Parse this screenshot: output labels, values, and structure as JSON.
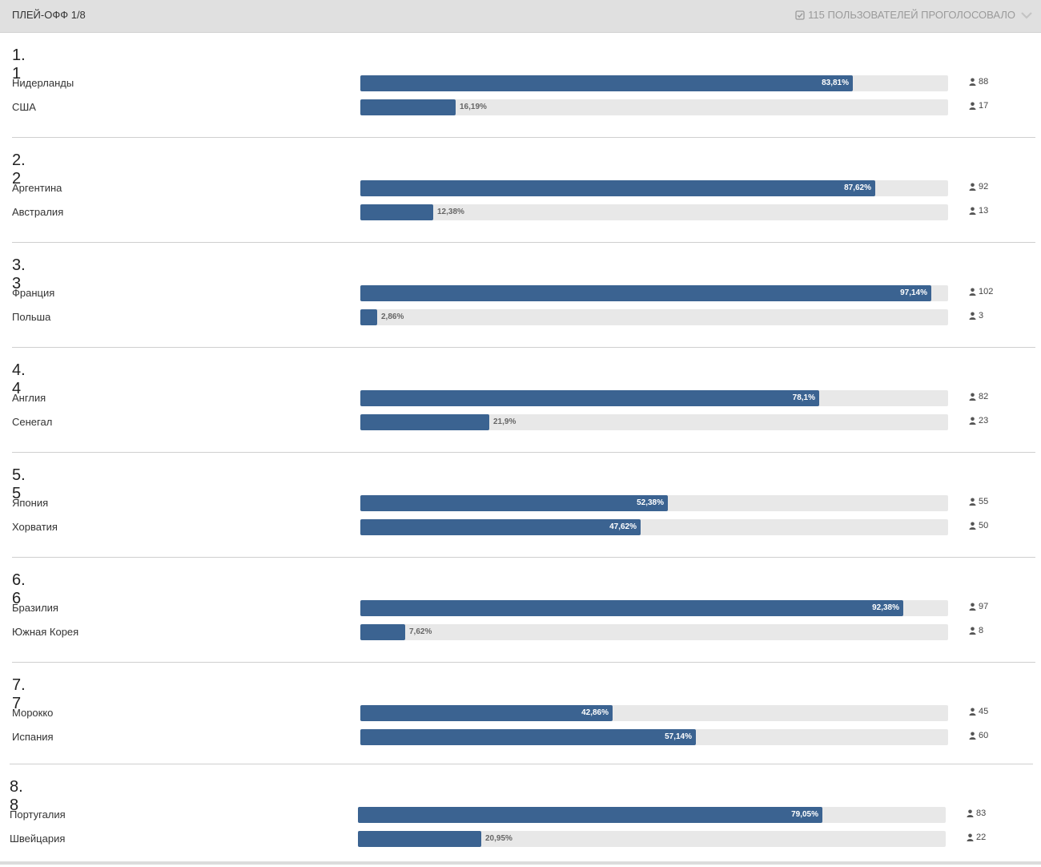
{
  "header": {
    "title": "ПЛЕЙ-ОФФ 1/8",
    "voted": "115 ПОЛЬЗОВАТЕЛЕЙ ПРОГОЛОСОВАЛО"
  },
  "colors": {
    "bar": "#3b6391",
    "track": "#e8e8e8"
  },
  "questions": [
    {
      "title": "1. 1",
      "options": [
        {
          "label": "Нидерланды",
          "percent": 83.81,
          "percent_text": "83,81%",
          "votes": "88"
        },
        {
          "label": "США",
          "percent": 16.19,
          "percent_text": "16,19%",
          "votes": "17"
        }
      ]
    },
    {
      "title": "2. 2",
      "options": [
        {
          "label": "Аргентина",
          "percent": 87.62,
          "percent_text": "87,62%",
          "votes": "92"
        },
        {
          "label": "Австралия",
          "percent": 12.38,
          "percent_text": "12,38%",
          "votes": "13"
        }
      ]
    },
    {
      "title": "3. 3",
      "options": [
        {
          "label": "Франция",
          "percent": 97.14,
          "percent_text": "97,14%",
          "votes": "102"
        },
        {
          "label": "Польша",
          "percent": 2.86,
          "percent_text": "2,86%",
          "votes": "3"
        }
      ]
    },
    {
      "title": "4. 4",
      "options": [
        {
          "label": "Англия",
          "percent": 78.1,
          "percent_text": "78,1%",
          "votes": "82"
        },
        {
          "label": "Сенегал",
          "percent": 21.9,
          "percent_text": "21,9%",
          "votes": "23"
        }
      ]
    },
    {
      "title": "5. 5",
      "options": [
        {
          "label": "Япония",
          "percent": 52.38,
          "percent_text": "52,38%",
          "votes": "55"
        },
        {
          "label": "Хорватия",
          "percent": 47.62,
          "percent_text": "47,62%",
          "votes": "50"
        }
      ]
    },
    {
      "title": "6. 6",
      "options": [
        {
          "label": "Бразилия",
          "percent": 92.38,
          "percent_text": "92,38%",
          "votes": "97"
        },
        {
          "label": "Южная Корея",
          "percent": 7.62,
          "percent_text": "7,62%",
          "votes": "8"
        }
      ]
    },
    {
      "title": "7. 7",
      "options": [
        {
          "label": "Морокко",
          "percent": 42.86,
          "percent_text": "42,86%",
          "votes": "45"
        },
        {
          "label": "Испания",
          "percent": 57.14,
          "percent_text": "57,14%",
          "votes": "60"
        }
      ]
    },
    {
      "title": "8. 8",
      "options": [
        {
          "label": "Португалия",
          "percent": 79.05,
          "percent_text": "79,05%",
          "votes": "83"
        },
        {
          "label": "Швейцария",
          "percent": 20.95,
          "percent_text": "20,95%",
          "votes": "22"
        }
      ]
    }
  ]
}
